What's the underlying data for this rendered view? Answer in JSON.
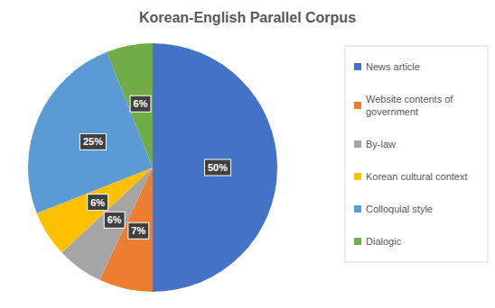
{
  "chart_data": {
    "type": "pie",
    "title": "Korean-English Parallel Corpus",
    "categories": [
      "News article",
      "Website contents of government",
      "By-law",
      "Korean cultural context",
      "Colloquial style",
      "Dialogic"
    ],
    "values": [
      50,
      7,
      6,
      6,
      25,
      6
    ],
    "value_labels": [
      "50%",
      "7%",
      "6%",
      "6%",
      "25%",
      "6%"
    ],
    "colors": [
      "#4472c4",
      "#ed7d31",
      "#a5a5a5",
      "#ffc000",
      "#5b9bd5",
      "#70ad47"
    ],
    "data_labels": true,
    "legend": "right"
  }
}
